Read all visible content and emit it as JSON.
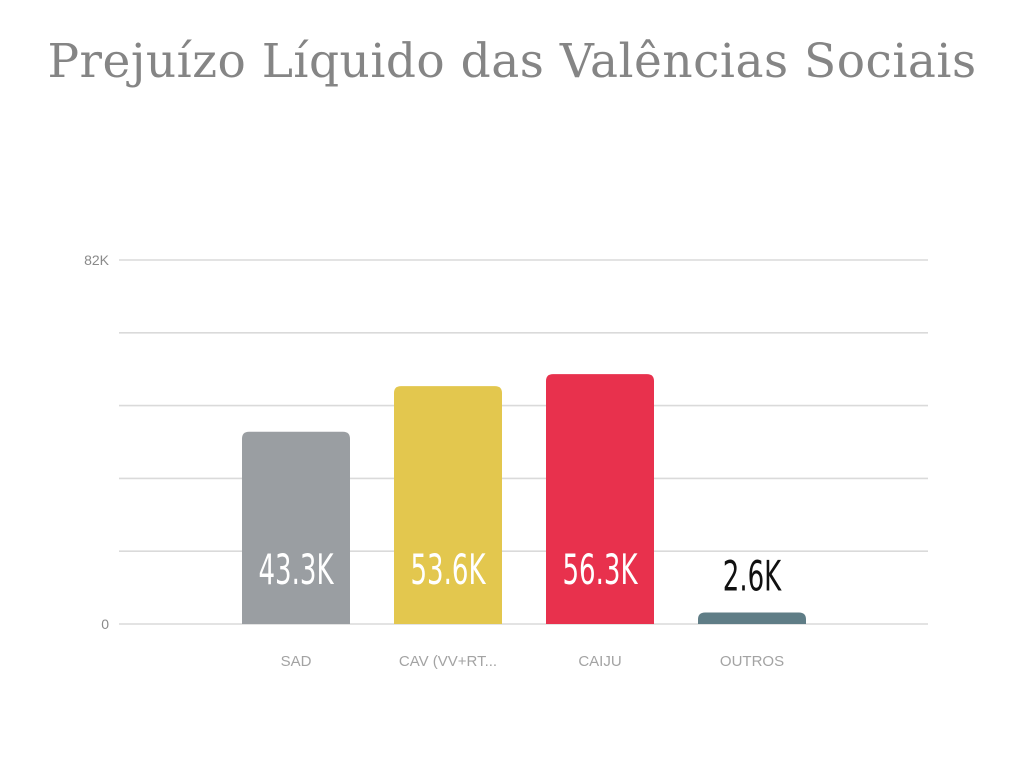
{
  "title": "Prejuízo Líquido das Valências Sociais",
  "chart_data": {
    "type": "bar",
    "title": "Prejuízo Líquido das Valências Sociais",
    "categories": [
      "SAD",
      "CAV (VV+RT...",
      "CAIJU",
      "OUTROS"
    ],
    "values": [
      43300,
      53600,
      56300,
      2600
    ],
    "data_labels": [
      "43.3K",
      "53.6K",
      "56.3K",
      "2.6K"
    ],
    "colors": [
      "#9a9ea2",
      "#e3c74e",
      "#e8314d",
      "#5f7d86"
    ],
    "ylim": [
      0,
      82000
    ],
    "y_ticks": [
      {
        "value": 0,
        "label": "0"
      },
      {
        "value": 82000,
        "label": "82K"
      }
    ],
    "gridlines": [
      0,
      16400,
      32800,
      49200,
      65600,
      82000
    ],
    "grid": true,
    "legend": "none",
    "xlabel": "",
    "ylabel": ""
  }
}
